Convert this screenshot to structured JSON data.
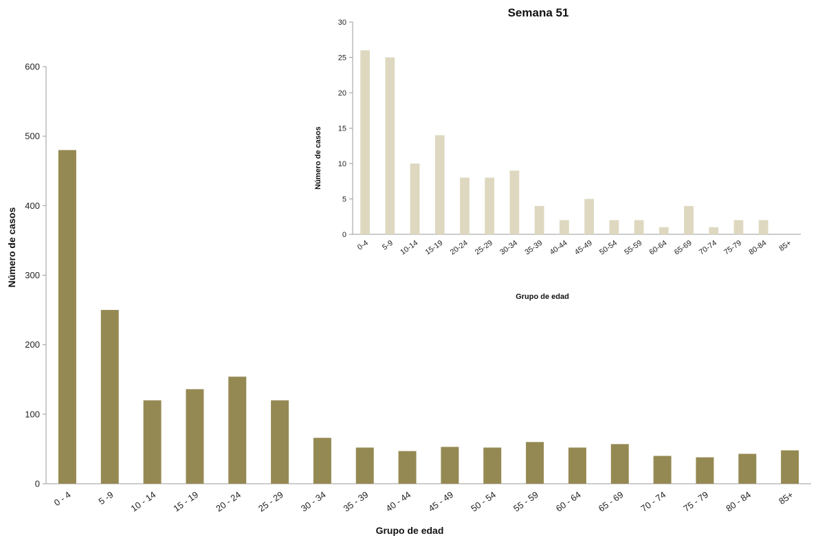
{
  "chart_data": [
    {
      "type": "bar",
      "title": "",
      "xlabel": "Grupo de edad",
      "ylabel": "Número de casos",
      "ylim": [
        0,
        600
      ],
      "yticks": [
        0,
        100,
        200,
        300,
        400,
        500,
        600
      ],
      "grid": false,
      "bar_color": "#958953",
      "categories": [
        "0 - 4",
        "5 -9",
        "10 - 14",
        "15 - 19",
        "20 - 24",
        "25 - 29",
        "30 - 34",
        "35 - 39",
        "40 - 44",
        "45 - 49",
        "50 - 54",
        "55 - 59",
        "60 - 64",
        "65 - 69",
        "70 - 74",
        "75 - 79",
        "80 - 84",
        "85+"
      ],
      "values": [
        480,
        250,
        120,
        136,
        154,
        120,
        66,
        52,
        47,
        53,
        52,
        60,
        52,
        57,
        40,
        38,
        43,
        48
      ]
    },
    {
      "type": "bar",
      "title": "Semana 51",
      "xlabel": "Grupo de edad",
      "ylabel": "Número de casos",
      "ylim": [
        0,
        30
      ],
      "yticks": [
        0,
        5,
        10,
        15,
        20,
        25,
        30
      ],
      "grid": false,
      "bar_color": "#ddd8bf",
      "categories": [
        "0-4",
        "5-9",
        "10-14",
        "15-19",
        "20-24",
        "25-29",
        "30-34",
        "35-39",
        "40-44",
        "45-49",
        "50-54",
        "55-59",
        "60-64",
        "65-69",
        "70-74",
        "75-79",
        "80-84",
        "85+"
      ],
      "values": [
        26,
        25,
        10,
        14,
        8,
        8,
        9,
        4,
        2,
        5,
        2,
        2,
        1,
        4,
        1,
        2,
        2,
        0
      ]
    }
  ]
}
